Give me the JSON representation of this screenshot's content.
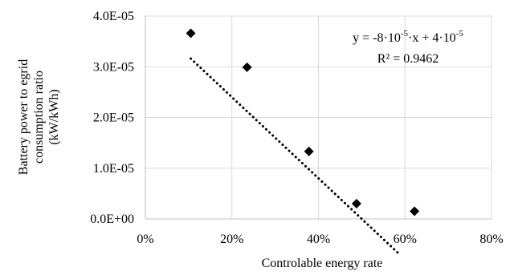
{
  "chart_data": {
    "type": "scatter",
    "xlabel": "Controlable energy rate",
    "ylabel_lines": [
      "Battery power to egrid",
      "consumption ratio",
      "(kW/kWh)"
    ],
    "xlim": [
      0,
      0.8
    ],
    "ylim": [
      0,
      4e-05
    ],
    "x_ticks": [
      0,
      0.2,
      0.4,
      0.6,
      0.8
    ],
    "x_tick_labels": [
      "0%",
      "20%",
      "40%",
      "60%",
      "80%"
    ],
    "y_ticks": [
      0,
      1e-05,
      2e-05,
      3e-05,
      4e-05
    ],
    "y_tick_labels": [
      "0.0E+00",
      "1.0E-05",
      "2.0E-05",
      "3.0E-05",
      "4.0E-05"
    ],
    "grid": true,
    "series": [
      {
        "marker": "diamond",
        "color": "#000000",
        "points": [
          {
            "x": 0.105,
            "y": 3.66e-05
          },
          {
            "x": 0.235,
            "y": 2.99e-05
          },
          {
            "x": 0.378,
            "y": 1.33e-05
          },
          {
            "x": 0.488,
            "y": 3e-06
          },
          {
            "x": 0.622,
            "y": 1.5e-06
          }
        ]
      }
    ],
    "trendline": {
      "style": "dotted",
      "color": "#000000",
      "x_range": [
        0.105,
        0.583
      ],
      "slope": -8e-05,
      "intercept": 4e-05,
      "equation_parts": [
        "y = -8·10",
        "-5",
        "·x + 4·10",
        "-5"
      ],
      "r2_label": "R² = 0.9462"
    }
  }
}
